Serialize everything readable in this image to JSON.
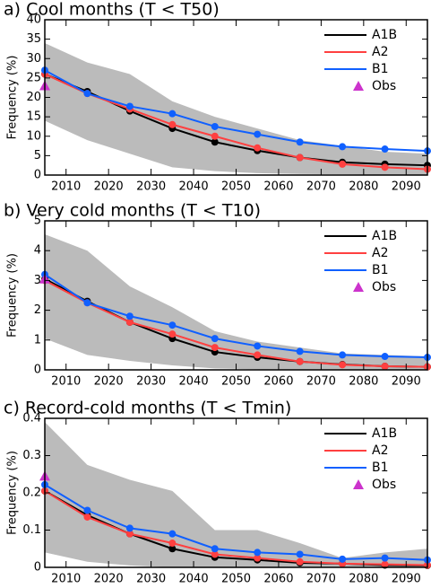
{
  "chart_data": [
    {
      "type": "line",
      "title": "a) Cool months (T < T50)",
      "ylabel": "Frequency (%)",
      "x": [
        2005,
        2015,
        2025,
        2035,
        2045,
        2055,
        2065,
        2075,
        2085,
        2095
      ],
      "xlim": [
        2005,
        2095
      ],
      "xticks": [
        2010,
        2020,
        2030,
        2040,
        2050,
        2060,
        2070,
        2080,
        2090
      ],
      "ylim": [
        0,
        40
      ],
      "yticks": [
        0,
        5,
        10,
        15,
        20,
        25,
        30,
        35,
        40
      ],
      "band": {
        "color": "#bbbbbb",
        "upper": [
          34,
          29,
          26,
          19,
          15,
          12,
          9,
          7.5,
          6,
          5.5
        ],
        "lower": [
          14,
          9,
          5.5,
          2,
          1,
          0.5,
          0.3,
          0.2,
          0.1,
          0.1
        ]
      },
      "series": [
        {
          "name": "A1B",
          "color": "#000000",
          "values": [
            26,
            21.5,
            16.5,
            12,
            8.5,
            6.3,
            4.5,
            3.3,
            2.8,
            2.5
          ]
        },
        {
          "name": "A2",
          "color": "#ff4040",
          "values": [
            26,
            21,
            17,
            13,
            10,
            7,
            4.5,
            2.8,
            2,
            1.5
          ]
        },
        {
          "name": "B1",
          "color": "#1060ff",
          "values": [
            27,
            21,
            17.7,
            15.8,
            12.5,
            10.5,
            8.5,
            7.3,
            6.7,
            6.2
          ]
        }
      ],
      "observed": {
        "name": "Obs",
        "color": "#cc33cc",
        "x": 2005,
        "value": 23
      }
    },
    {
      "type": "line",
      "title": "b) Very cold months (T < T10)",
      "ylabel": "Frequency (%)",
      "x": [
        2005,
        2015,
        2025,
        2035,
        2045,
        2055,
        2065,
        2075,
        2085,
        2095
      ],
      "xlim": [
        2005,
        2095
      ],
      "xticks": [
        2010,
        2020,
        2030,
        2040,
        2050,
        2060,
        2070,
        2080,
        2090
      ],
      "ylim": [
        0,
        5
      ],
      "yticks": [
        0,
        1,
        2,
        3,
        4,
        5
      ],
      "band": {
        "color": "#bbbbbb",
        "upper": [
          4.55,
          4.0,
          2.8,
          2.1,
          1.3,
          0.95,
          0.75,
          0.55,
          0.5,
          0.45
        ],
        "lower": [
          1.05,
          0.5,
          0.3,
          0.15,
          0.05,
          0.02,
          0,
          0,
          0,
          0
        ]
      },
      "series": [
        {
          "name": "A1B",
          "color": "#000000",
          "values": [
            3.05,
            2.3,
            1.6,
            1.05,
            0.6,
            0.42,
            0.28,
            0.18,
            0.12,
            0.1
          ]
        },
        {
          "name": "A2",
          "color": "#ff4040",
          "values": [
            3.0,
            2.25,
            1.6,
            1.2,
            0.75,
            0.5,
            0.28,
            0.17,
            0.12,
            0.1
          ]
        },
        {
          "name": "B1",
          "color": "#1060ff",
          "values": [
            3.2,
            2.25,
            1.8,
            1.5,
            1.05,
            0.8,
            0.62,
            0.5,
            0.45,
            0.42
          ]
        }
      ],
      "observed": {
        "name": "Obs",
        "color": "#cc33cc",
        "x": 2005,
        "value": 3.05
      }
    },
    {
      "type": "line",
      "title": "c) Record-cold months (T < Tmin)",
      "ylabel": "Frequency (%)",
      "x": [
        2005,
        2015,
        2025,
        2035,
        2045,
        2055,
        2065,
        2075,
        2085,
        2095
      ],
      "xlim": [
        2005,
        2095
      ],
      "xticks": [
        2010,
        2020,
        2030,
        2040,
        2050,
        2060,
        2070,
        2080,
        2090
      ],
      "ylim": [
        0,
        0.4
      ],
      "yticks": [
        0,
        0.1,
        0.2,
        0.3,
        0.4
      ],
      "band": {
        "color": "#bbbbbb",
        "upper": [
          0.39,
          0.275,
          0.235,
          0.205,
          0.1,
          0.1,
          0.065,
          0.025,
          0.04,
          0.05
        ],
        "lower": [
          0.04,
          0.015,
          0.005,
          0,
          0,
          0,
          0,
          0,
          0,
          0
        ]
      },
      "series": [
        {
          "name": "A1B",
          "color": "#000000",
          "values": [
            0.205,
            0.14,
            0.09,
            0.05,
            0.027,
            0.02,
            0.012,
            0.01,
            0.006,
            0.005
          ]
        },
        {
          "name": "A2",
          "color": "#ff4040",
          "values": [
            0.205,
            0.135,
            0.09,
            0.065,
            0.035,
            0.025,
            0.015,
            0.01,
            0.008,
            0.006
          ]
        },
        {
          "name": "B1",
          "color": "#1060ff",
          "values": [
            0.222,
            0.153,
            0.105,
            0.09,
            0.05,
            0.04,
            0.035,
            0.022,
            0.025,
            0.02
          ]
        }
      ],
      "observed": {
        "name": "Obs",
        "color": "#cc33cc",
        "x": 2005,
        "value": 0.245
      }
    }
  ]
}
